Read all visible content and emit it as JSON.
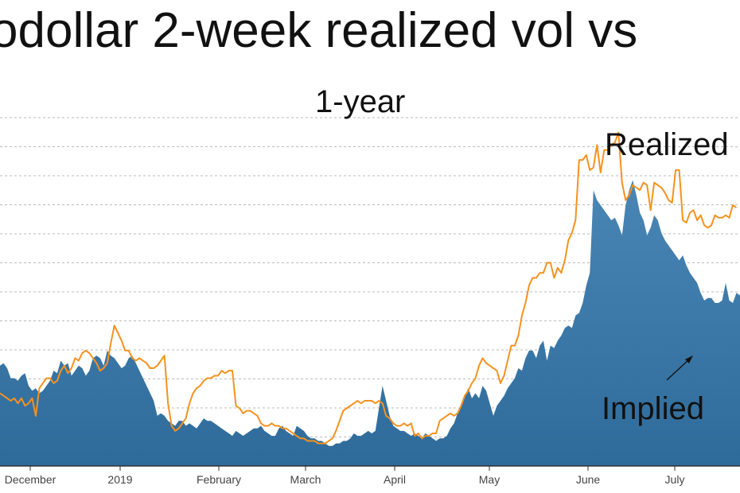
{
  "title": "odollar 2-week realized vol vs",
  "subtitle": "1-year",
  "annotations": {
    "realized": "Realized",
    "implied": "Implied"
  },
  "colors": {
    "implied_fill": "#2f6b9a",
    "implied_fill_light": "#4a86b5",
    "realized_line": "#f5921f",
    "grid": "#bbbbbb",
    "axis": "#333333"
  },
  "chart_data": {
    "type": "area",
    "title": "odollar 2-week realized vol vs",
    "subtitle": "1-year",
    "x_tick_labels": [
      "December",
      "2019",
      "February",
      "March",
      "April",
      "May",
      "June",
      "July"
    ],
    "grid": true,
    "gridline_count": 12,
    "series": [
      {
        "name": "Implied",
        "style": "filled-area",
        "values": [
          4.0,
          4.1,
          3.9,
          3.5,
          3.5,
          3.4,
          3.6,
          3.7,
          3.2,
          3.0,
          3.1,
          2.9,
          3.0,
          3.2,
          3.4,
          3.8,
          3.7,
          4.2,
          4.0,
          4.1,
          3.6,
          3.8,
          4.0,
          3.9,
          3.6,
          3.8,
          4.3,
          4.4,
          4.3,
          4.0,
          4.6,
          4.4,
          4.3,
          4.1,
          3.9,
          4.0,
          4.3,
          4.4,
          4.1,
          3.8,
          3.5,
          3.2,
          2.9,
          2.6,
          2.0,
          2.1,
          2.0,
          1.8,
          1.7,
          1.6,
          1.8,
          1.8,
          1.6,
          1.7,
          1.6,
          1.5,
          1.7,
          1.9,
          1.8,
          1.8,
          1.7,
          1.6,
          1.5,
          1.4,
          1.3,
          1.2,
          1.4,
          1.3,
          1.2,
          1.3,
          1.4,
          1.5,
          1.5,
          1.6,
          1.4,
          1.3,
          1.2,
          1.2,
          1.5,
          1.6,
          1.4,
          1.3,
          1.2,
          1.6,
          1.5,
          1.4,
          1.2,
          1.1,
          1.1,
          1.0,
          1.0,
          0.9,
          0.8,
          0.8,
          0.9,
          0.9,
          1.0,
          1.0,
          1.1,
          1.3,
          1.2,
          1.2,
          1.3,
          1.4,
          1.3,
          1.4,
          2.3,
          3.2,
          2.6,
          2.0,
          1.6,
          1.5,
          1.4,
          1.4,
          1.3,
          1.2,
          1.3,
          1.2,
          1.1,
          1.3,
          1.2,
          1.1,
          1.0,
          1.1,
          1.1,
          1.2,
          1.5,
          1.7,
          2.1,
          2.5,
          2.8,
          3.1,
          2.7,
          2.9,
          2.7,
          3.2,
          3.0,
          2.5,
          2.0,
          2.4,
          2.6,
          2.8,
          3.1,
          3.3,
          3.5,
          3.9,
          3.8,
          4.3,
          4.6,
          4.6,
          4.3,
          4.8,
          5.0,
          4.2,
          4.8,
          4.7,
          5.0,
          5.2,
          5.5,
          5.6,
          5.5,
          6.0,
          6.1,
          6.5,
          7.2,
          7.7,
          11.0,
          10.6,
          10.4,
          10.2,
          10.0,
          9.8,
          9.9,
          9.6,
          9.2,
          10.4,
          11.0,
          11.4,
          10.8,
          10.1,
          9.8,
          9.2,
          9.5,
          10.0,
          9.8,
          9.3,
          9.0,
          8.8,
          8.6,
          8.4,
          8.2,
          8.4,
          8.0,
          7.7,
          7.5,
          7.3,
          6.9,
          6.6,
          6.7,
          6.7,
          6.5,
          6.5,
          6.6,
          7.3,
          6.6,
          6.5,
          6.9,
          6.8
        ]
      },
      {
        "name": "Realized",
        "style": "line",
        "values": [
          2.9,
          2.8,
          2.7,
          2.6,
          2.7,
          2.5,
          2.7,
          2.4,
          2.5,
          2.7,
          2.0,
          3.1,
          3.3,
          3.5,
          3.5,
          3.3,
          3.4,
          3.8,
          4.0,
          3.7,
          3.9,
          4.3,
          4.2,
          4.5,
          4.6,
          4.5,
          4.3,
          4.1,
          3.8,
          3.9,
          4.1,
          4.9,
          5.6,
          5.3,
          5.0,
          4.6,
          4.6,
          4.3,
          4.2,
          4.3,
          4.2,
          4.1,
          3.9,
          3.9,
          4.0,
          4.2,
          4.4,
          2.5,
          1.6,
          1.4,
          1.5,
          1.7,
          1.9,
          2.5,
          2.9,
          3.1,
          3.2,
          3.4,
          3.5,
          3.5,
          3.6,
          3.6,
          3.8,
          3.7,
          3.8,
          3.8,
          2.4,
          2.3,
          2.1,
          2.2,
          2.2,
          2.1,
          2.0,
          1.7,
          1.6,
          1.6,
          1.7,
          1.6,
          1.6,
          1.5,
          1.5,
          1.4,
          1.3,
          1.2,
          1.1,
          1.1,
          1.0,
          1.0,
          1.0,
          0.9,
          0.9,
          0.9,
          1.0,
          1.1,
          1.4,
          1.8,
          2.2,
          2.3,
          2.4,
          2.5,
          2.6,
          2.5,
          2.6,
          2.6,
          2.6,
          2.5,
          2.6,
          2.5,
          2.0,
          1.9,
          1.7,
          1.6,
          1.6,
          1.7,
          1.6,
          1.7,
          1.2,
          1.3,
          1.1,
          1.2,
          1.2,
          1.3,
          1.3,
          1.8,
          1.9,
          2.0,
          2.1,
          2.0,
          2.1,
          2.4,
          2.8,
          3.0,
          3.3,
          3.5,
          4.0,
          4.3,
          4.1,
          4.0,
          3.9,
          3.8,
          3.3,
          3.6,
          4.2,
          4.8,
          4.8,
          5.2,
          6.0,
          6.5,
          7.2,
          7.5,
          7.5,
          7.7,
          7.7,
          8.1,
          8.1,
          7.5,
          7.9,
          7.7,
          8.2,
          9.0,
          9.3,
          9.8,
          12.2,
          12.2,
          12.4,
          11.8,
          11.9,
          12.8,
          11.7,
          12.6,
          12.6,
          12.8,
          12.9,
          13.3,
          11.3,
          10.6,
          10.8,
          11.2,
          11.1,
          11.0,
          11.3,
          11.2,
          10.2,
          11.3,
          11.2,
          11.1,
          10.9,
          10.6,
          10.5,
          11.8,
          11.8,
          9.8,
          9.7,
          10.1,
          10.2,
          9.8,
          10.0,
          9.6,
          9.5,
          9.6,
          10.0,
          9.9,
          9.9,
          10.0,
          9.9,
          10.4,
          10.3
        ]
      }
    ]
  }
}
